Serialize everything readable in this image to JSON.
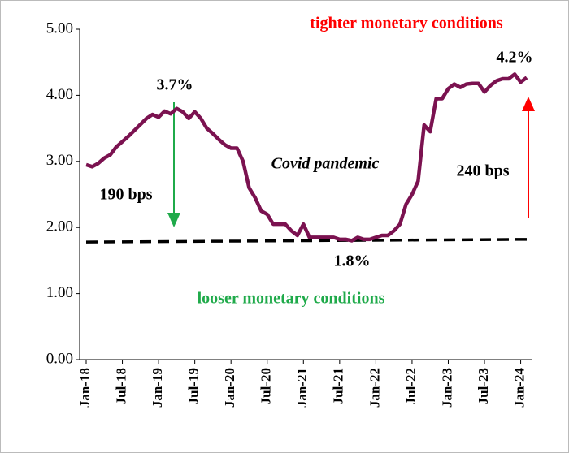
{
  "chart_data": {
    "type": "line",
    "categories": [
      "Jan-18",
      null,
      null,
      null,
      null,
      null,
      "Jul-18",
      null,
      null,
      null,
      null,
      null,
      "Jan-19",
      null,
      null,
      null,
      null,
      null,
      "Jul-19",
      null,
      null,
      null,
      null,
      null,
      "Jan-20",
      null,
      null,
      null,
      null,
      null,
      "Jul-20",
      null,
      null,
      null,
      null,
      null,
      "Jan-21",
      null,
      null,
      null,
      null,
      null,
      "Jul-21",
      null,
      null,
      null,
      null,
      null,
      "Jan-22",
      null,
      null,
      null,
      null,
      null,
      "Jul-22",
      null,
      null,
      null,
      null,
      null,
      "Jan-23",
      null,
      null,
      null,
      null,
      null,
      "Jul-23",
      null,
      null,
      null,
      null,
      null,
      "Jan-24",
      null
    ],
    "series": [
      {
        "color": "#7b1250",
        "values": [
          2.95,
          2.92,
          2.97,
          3.05,
          3.1,
          3.22,
          3.3,
          3.38,
          3.47,
          3.56,
          3.65,
          3.71,
          3.67,
          3.76,
          3.72,
          3.8,
          3.75,
          3.65,
          3.75,
          3.65,
          3.5,
          3.42,
          3.33,
          3.25,
          3.2,
          3.2,
          3.0,
          2.6,
          2.45,
          2.25,
          2.2,
          2.05,
          2.05,
          2.05,
          1.95,
          1.88,
          2.05,
          1.85,
          1.85,
          1.85,
          1.85,
          1.85,
          1.82,
          1.82,
          1.8,
          1.85,
          1.82,
          1.82,
          1.85,
          1.88,
          1.88,
          1.95,
          2.05,
          2.35,
          2.5,
          2.7,
          3.55,
          3.45,
          3.95,
          3.95,
          4.1,
          4.17,
          4.12,
          4.17,
          4.18,
          4.18,
          4.05,
          4.15,
          4.22,
          4.25,
          4.25,
          4.32,
          4.2,
          4.27
        ]
      }
    ],
    "trend": {
      "color": "#000000",
      "values": [
        1.78,
        1.82
      ]
    },
    "ylim": [
      0,
      5
    ],
    "yticks": [
      {
        "value": 0,
        "label": "0.00"
      },
      {
        "value": 1,
        "label": "1.00"
      },
      {
        "value": 2,
        "label": "2.00"
      },
      {
        "value": 3,
        "label": "3.00"
      },
      {
        "value": 4,
        "label": "4.00"
      },
      {
        "value": 5,
        "label": "5.00"
      }
    ],
    "annotations": [
      "tighter monetary conditions",
      "looser monetary conditions",
      "3.7%",
      "4.2%",
      "1.8%",
      "190 bps",
      "240 bps",
      "Covid pandemic"
    ]
  }
}
